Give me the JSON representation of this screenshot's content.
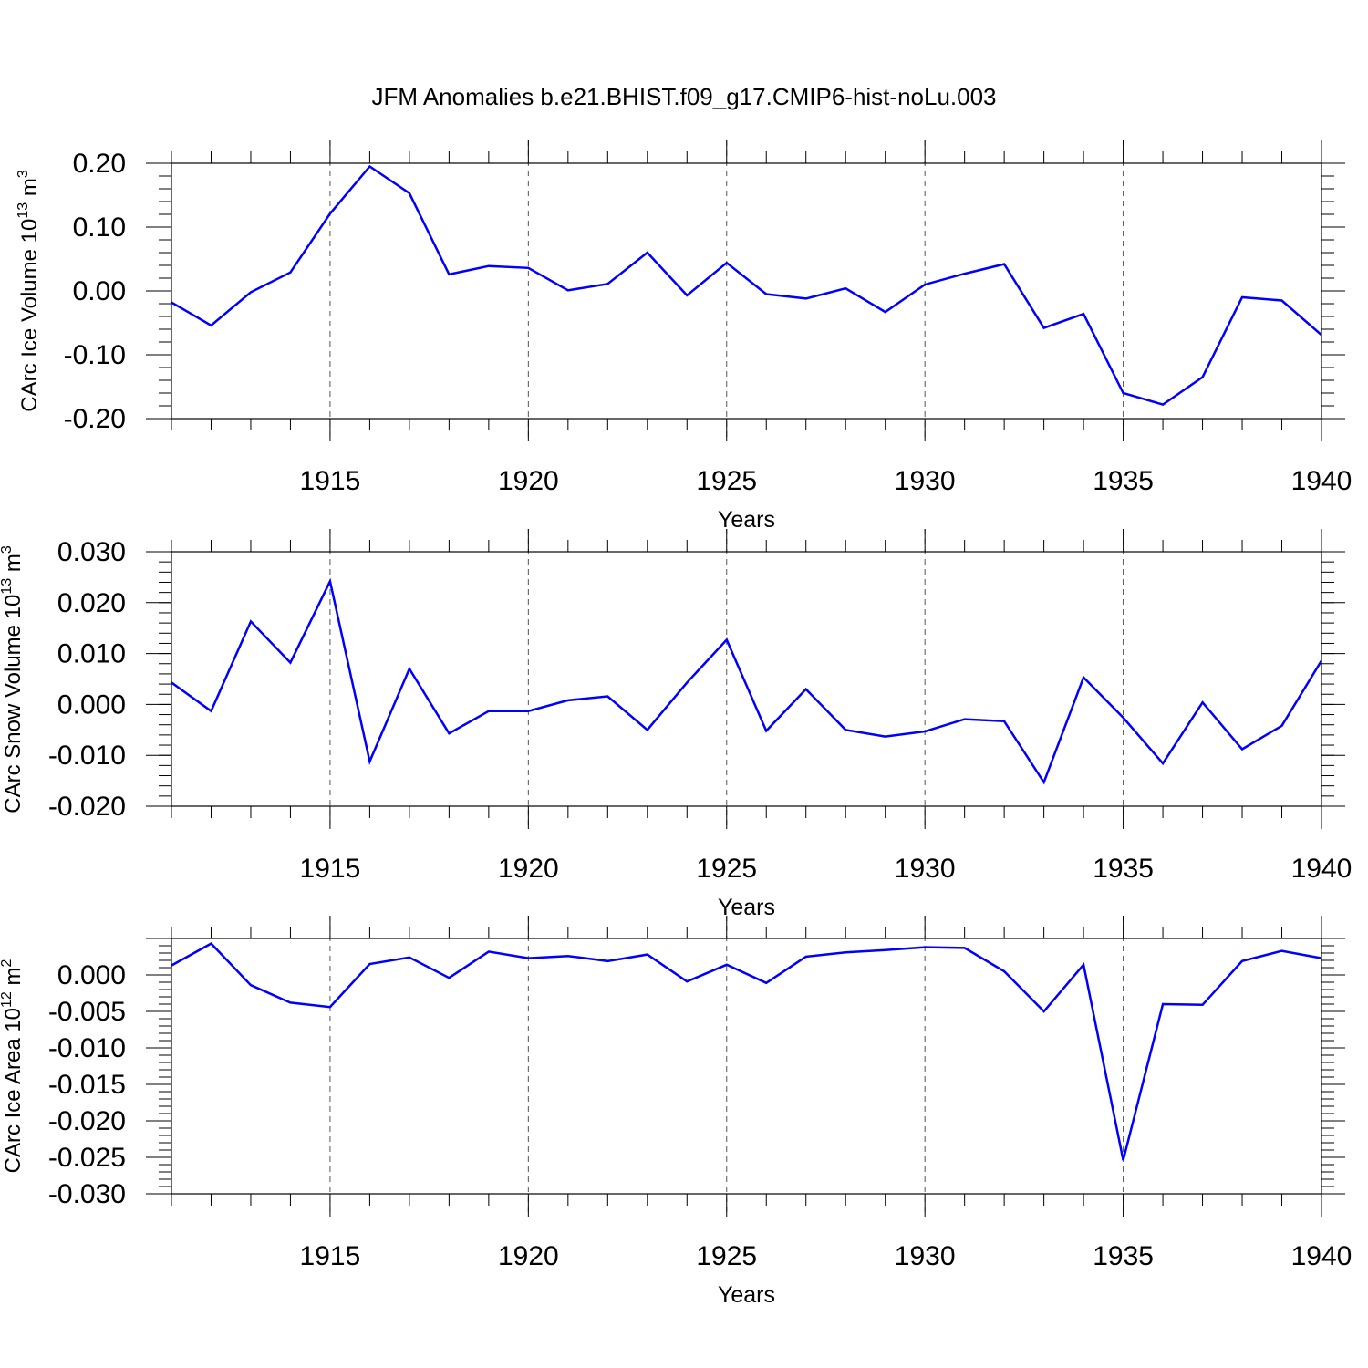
{
  "title": "JFM Anomalies b.e21.BHIST.f09_g17.CMIP6-hist-noLu.003",
  "colors": {
    "series": "#0000ff",
    "axes": "#000000",
    "grid": "#555555"
  },
  "chart_data": [
    {
      "type": "line",
      "ylabel_main": "CArc Ice Volume 10",
      "ylabel_exp": "13",
      "ylabel_unit": "m",
      "ylabel_unit_exp": "3",
      "xlabel": "Years",
      "xlim": [
        1911,
        1940
      ],
      "ylim": [
        -0.2,
        0.2
      ],
      "yticks": [
        0.2,
        0.1,
        0.0,
        -0.1,
        -0.2
      ],
      "ytick_labels": [
        "0.20",
        "0.10",
        "0.00",
        "-0.10",
        "-0.20"
      ],
      "xticks": [
        1915,
        1920,
        1925,
        1930,
        1935,
        1940
      ],
      "xtick_labels": [
        "1915",
        "1920",
        "1925",
        "1930",
        "1935",
        "1940"
      ],
      "x": [
        1911,
        1912,
        1913,
        1914,
        1915,
        1916,
        1917,
        1918,
        1919,
        1920,
        1921,
        1922,
        1923,
        1924,
        1925,
        1926,
        1927,
        1928,
        1929,
        1930,
        1931,
        1932,
        1933,
        1934,
        1935,
        1936,
        1937,
        1938,
        1939,
        1940
      ],
      "values": [
        -0.018,
        -0.054,
        -0.002,
        0.029,
        0.121,
        0.195,
        0.153,
        0.026,
        0.039,
        0.036,
        0.001,
        0.011,
        0.06,
        -0.007,
        0.044,
        -0.005,
        -0.012,
        0.004,
        -0.033,
        0.01,
        0.027,
        0.042,
        -0.058,
        -0.036,
        -0.16,
        -0.178,
        -0.135,
        -0.01,
        -0.015,
        -0.069
      ]
    },
    {
      "type": "line",
      "ylabel_main": "CArc Snow Volume 10",
      "ylabel_exp": "13",
      "ylabel_unit": "m",
      "ylabel_unit_exp": "3",
      "xlabel": "Years",
      "xlim": [
        1911,
        1940
      ],
      "ylim": [
        -0.02,
        0.03
      ],
      "yticks": [
        0.03,
        0.02,
        0.01,
        0.0,
        -0.01,
        -0.02
      ],
      "ytick_labels": [
        "0.030",
        "0.020",
        "0.010",
        "0.000",
        "-0.010",
        "-0.020"
      ],
      "xticks": [
        1915,
        1920,
        1925,
        1930,
        1935,
        1940
      ],
      "xtick_labels": [
        "1915",
        "1920",
        "1925",
        "1930",
        "1935",
        "1940"
      ],
      "x": [
        1911,
        1912,
        1913,
        1914,
        1915,
        1916,
        1917,
        1918,
        1919,
        1920,
        1921,
        1922,
        1923,
        1924,
        1925,
        1926,
        1927,
        1928,
        1929,
        1930,
        1931,
        1932,
        1933,
        1934,
        1935,
        1936,
        1937,
        1938,
        1939,
        1940
      ],
      "values": [
        0.0043,
        -0.0013,
        0.0163,
        0.0082,
        0.0242,
        -0.0112,
        0.007,
        -0.0057,
        -0.0013,
        -0.0013,
        0.0008,
        0.0016,
        -0.005,
        0.0043,
        0.0127,
        -0.0052,
        0.003,
        -0.005,
        -0.0063,
        -0.0053,
        -0.0029,
        -0.0033,
        -0.0153,
        0.0053,
        -0.0026,
        -0.0116,
        0.0004,
        -0.0088,
        -0.0042,
        0.0086
      ]
    },
    {
      "type": "line",
      "ylabel_main": "CArc Ice Area 10",
      "ylabel_exp": "12",
      "ylabel_unit": "m",
      "ylabel_unit_exp": "2",
      "xlabel": "Years",
      "xlim": [
        1911,
        1940
      ],
      "ylim": [
        -0.03,
        0.005
      ],
      "yticks": [
        0.0,
        -0.005,
        -0.01,
        -0.015,
        -0.02,
        -0.025,
        -0.03
      ],
      "ytick_labels": [
        "0.000",
        "-0.005",
        "-0.010",
        "-0.015",
        "-0.020",
        "-0.025",
        "-0.030"
      ],
      "xticks": [
        1915,
        1920,
        1925,
        1930,
        1935,
        1940
      ],
      "xtick_labels": [
        "1915",
        "1920",
        "1925",
        "1930",
        "1935",
        "1940"
      ],
      "x": [
        1911,
        1912,
        1913,
        1914,
        1915,
        1916,
        1917,
        1918,
        1919,
        1920,
        1921,
        1922,
        1923,
        1924,
        1925,
        1926,
        1927,
        1928,
        1929,
        1930,
        1931,
        1932,
        1933,
        1934,
        1935,
        1936,
        1937,
        1938,
        1939,
        1940
      ],
      "values": [
        0.0013,
        0.0043,
        -0.0014,
        -0.0038,
        -0.0044,
        0.0015,
        0.0024,
        -0.0004,
        0.0032,
        0.0023,
        0.0026,
        0.0019,
        0.0028,
        -0.0009,
        0.0014,
        -0.0011,
        0.0025,
        0.0031,
        0.0034,
        0.0038,
        0.0037,
        0.0005,
        -0.005,
        0.0014,
        -0.0254,
        -0.004,
        -0.0041,
        0.0019,
        0.0033,
        0.0023
      ]
    }
  ]
}
